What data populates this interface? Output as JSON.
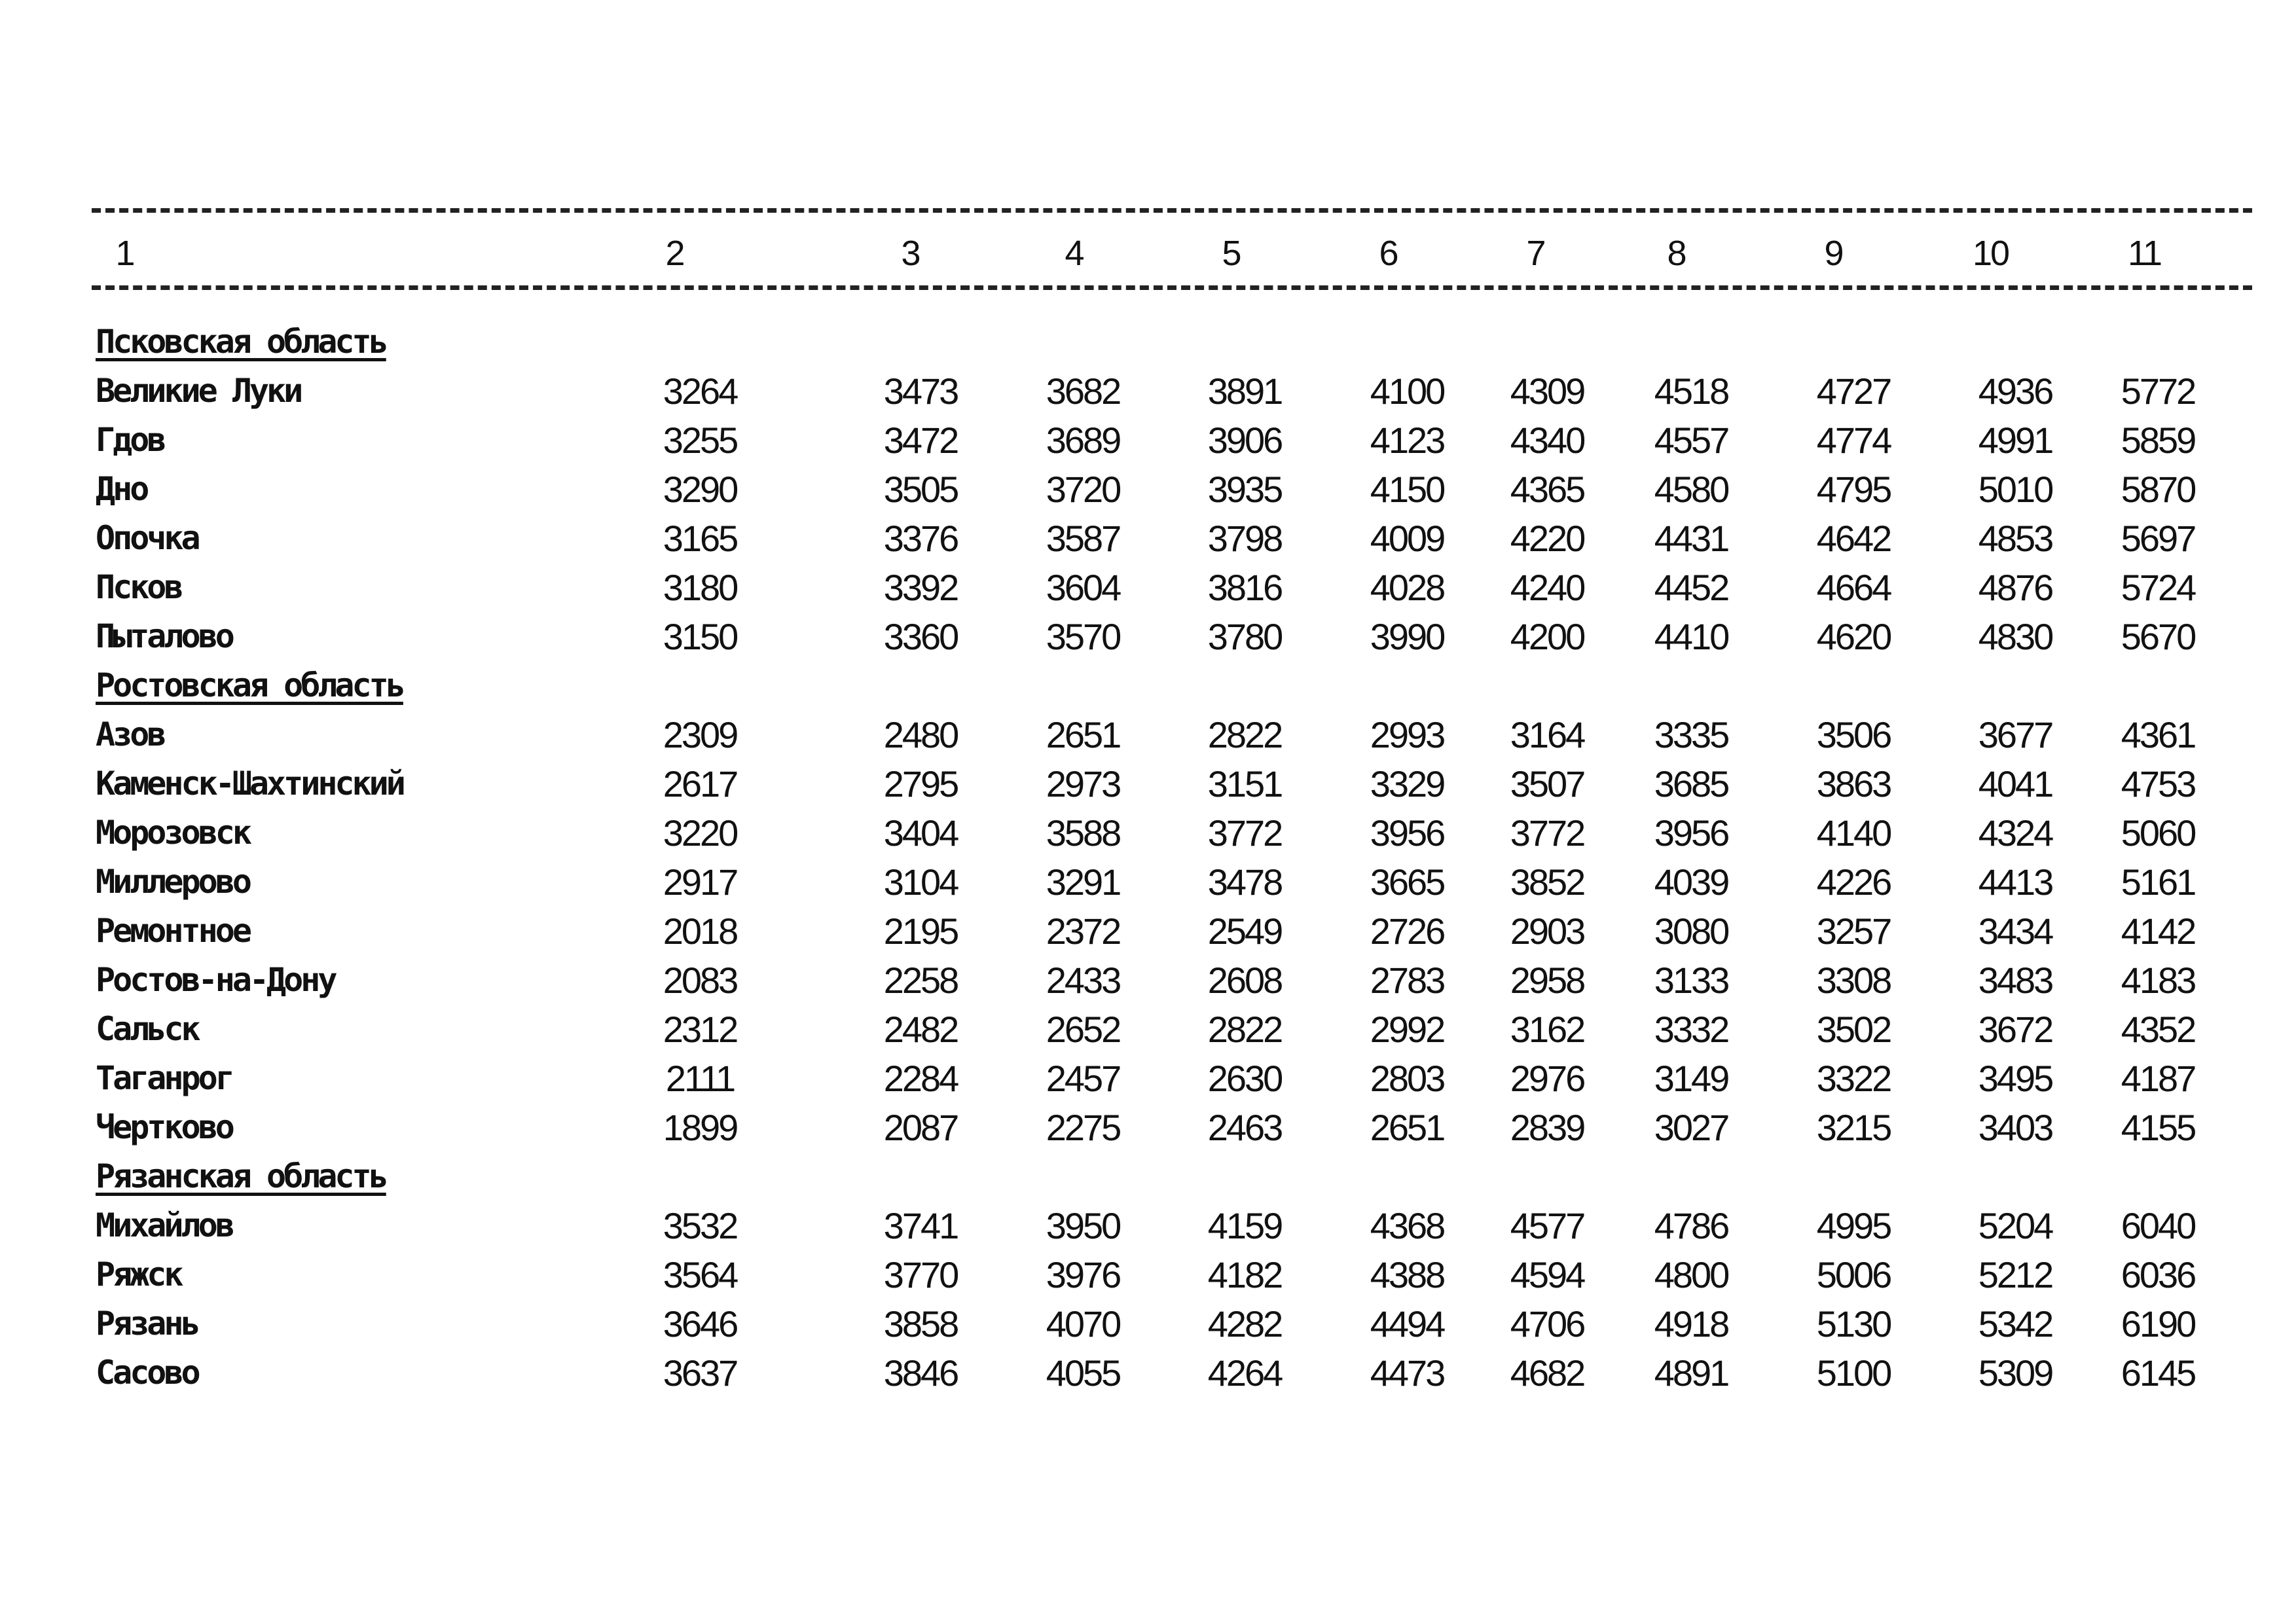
{
  "header": [
    "1",
    "2",
    "3",
    "4",
    "5",
    "6",
    "7",
    "8",
    "9",
    "10",
    "11"
  ],
  "sections": [
    {
      "title": "Псковская область",
      "rows": [
        {
          "name": "Великие Луки",
          "values": [
            3264,
            3473,
            3682,
            3891,
            4100,
            4309,
            4518,
            4727,
            4936,
            5772
          ]
        },
        {
          "name": "Гдов",
          "values": [
            3255,
            3472,
            3689,
            3906,
            4123,
            4340,
            4557,
            4774,
            4991,
            5859
          ]
        },
        {
          "name": "Дно",
          "values": [
            3290,
            3505,
            3720,
            3935,
            4150,
            4365,
            4580,
            4795,
            5010,
            5870
          ]
        },
        {
          "name": "Опочка",
          "values": [
            3165,
            3376,
            3587,
            3798,
            4009,
            4220,
            4431,
            4642,
            4853,
            5697
          ]
        },
        {
          "name": "Псков",
          "values": [
            3180,
            3392,
            3604,
            3816,
            4028,
            4240,
            4452,
            4664,
            4876,
            5724
          ]
        },
        {
          "name": "Пыталово",
          "values": [
            3150,
            3360,
            3570,
            3780,
            3990,
            4200,
            4410,
            4620,
            4830,
            5670
          ]
        }
      ]
    },
    {
      "title": "Ростовская область",
      "rows": [
        {
          "name": "Азов",
          "values": [
            2309,
            2480,
            2651,
            2822,
            2993,
            3164,
            3335,
            3506,
            3677,
            4361
          ]
        },
        {
          "name": "Каменск-Шахтинский",
          "values": [
            2617,
            2795,
            2973,
            3151,
            3329,
            3507,
            3685,
            3863,
            4041,
            4753
          ]
        },
        {
          "name": "Морозовск",
          "values": [
            3220,
            3404,
            3588,
            3772,
            3956,
            3772,
            3956,
            4140,
            4324,
            5060
          ]
        },
        {
          "name": "Миллерово",
          "values": [
            2917,
            3104,
            3291,
            3478,
            3665,
            3852,
            4039,
            4226,
            4413,
            5161
          ]
        },
        {
          "name": "Ремонтное",
          "values": [
            2018,
            2195,
            2372,
            2549,
            2726,
            2903,
            3080,
            3257,
            3434,
            4142
          ]
        },
        {
          "name": "Ростов-на-Дону",
          "values": [
            2083,
            2258,
            2433,
            2608,
            2783,
            2958,
            3133,
            3308,
            3483,
            4183
          ]
        },
        {
          "name": "Сальск",
          "values": [
            2312,
            2482,
            2652,
            2822,
            2992,
            3162,
            3332,
            3502,
            3672,
            4352
          ]
        },
        {
          "name": "Таганрог",
          "values": [
            2111,
            2284,
            2457,
            2630,
            2803,
            2976,
            3149,
            3322,
            3495,
            4187
          ]
        },
        {
          "name": "Чертково",
          "values": [
            1899,
            2087,
            2275,
            2463,
            2651,
            2839,
            3027,
            3215,
            3403,
            4155
          ]
        }
      ]
    },
    {
      "title": "Рязанская область",
      "rows": [
        {
          "name": "Михайлов",
          "values": [
            3532,
            3741,
            3950,
            4159,
            4368,
            4577,
            4786,
            4995,
            5204,
            6040
          ]
        },
        {
          "name": "Ряжск",
          "values": [
            3564,
            3770,
            3976,
            4182,
            4388,
            4594,
            4800,
            5006,
            5212,
            6036
          ]
        },
        {
          "name": "Рязань",
          "values": [
            3646,
            3858,
            4070,
            4282,
            4494,
            4706,
            4918,
            5130,
            5342,
            6190
          ]
        },
        {
          "name": "Сасово",
          "values": [
            3637,
            3846,
            4055,
            4264,
            4473,
            4682,
            4891,
            5100,
            5309,
            6145
          ]
        }
      ]
    }
  ]
}
